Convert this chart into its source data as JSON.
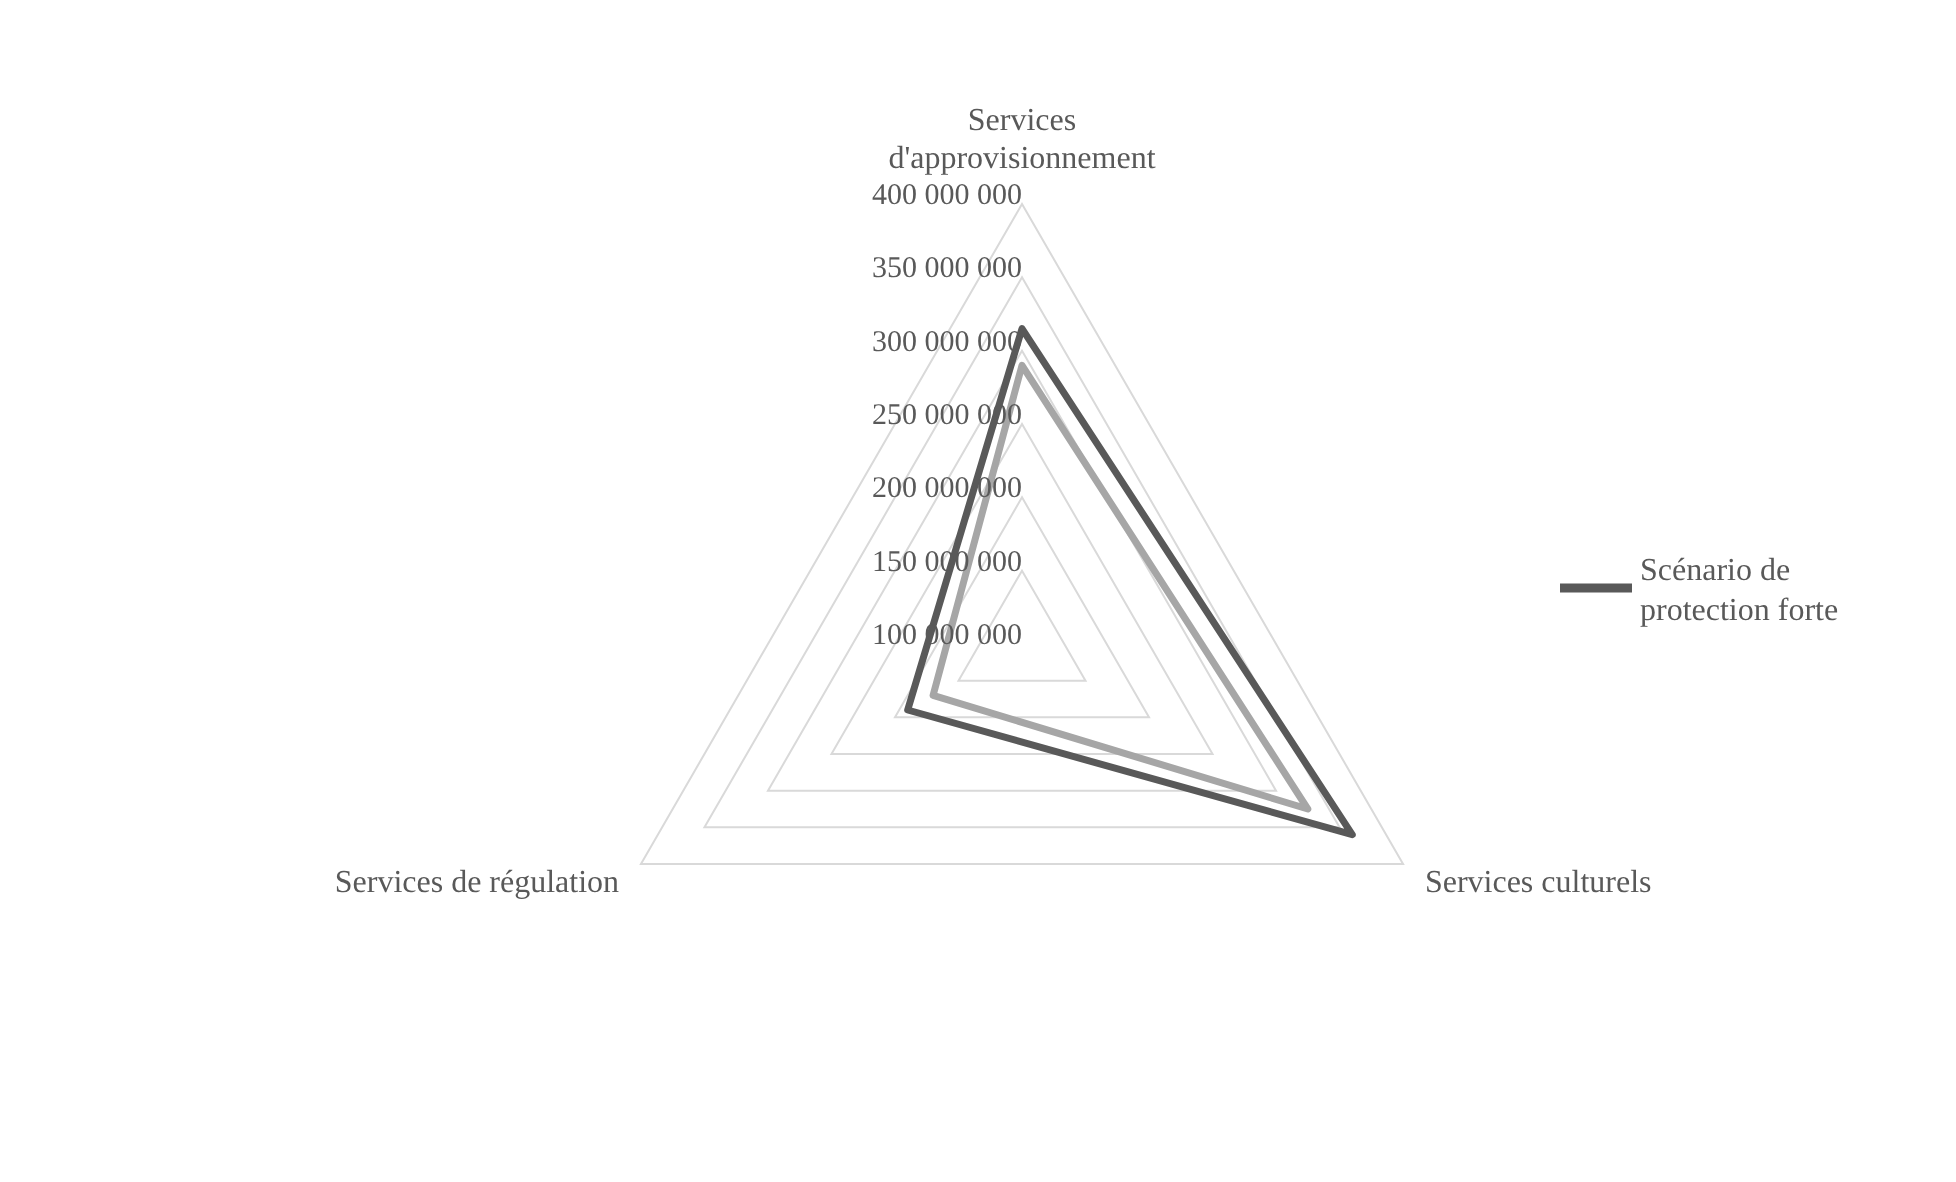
{
  "chart_data": {
    "type": "radar",
    "categories": [
      "Services d'approvisionnement",
      "Services culturels",
      "Services de régulation"
    ],
    "series": [
      {
        "name": "Scénario de protection forte",
        "color": "#595959",
        "values": [
          315000000,
          360000000,
          190000000
        ]
      },
      {
        "color": "#a6a6a6",
        "values": [
          290000000,
          325000000,
          170000000
        ]
      }
    ],
    "ylim": [
      100000000,
      400000000
    ],
    "yticks": [
      100000000,
      150000000,
      200000000,
      250000000,
      300000000,
      350000000,
      400000000
    ],
    "grid": true,
    "legend": "right",
    "marker": "none",
    "line_style": "solid"
  }
}
